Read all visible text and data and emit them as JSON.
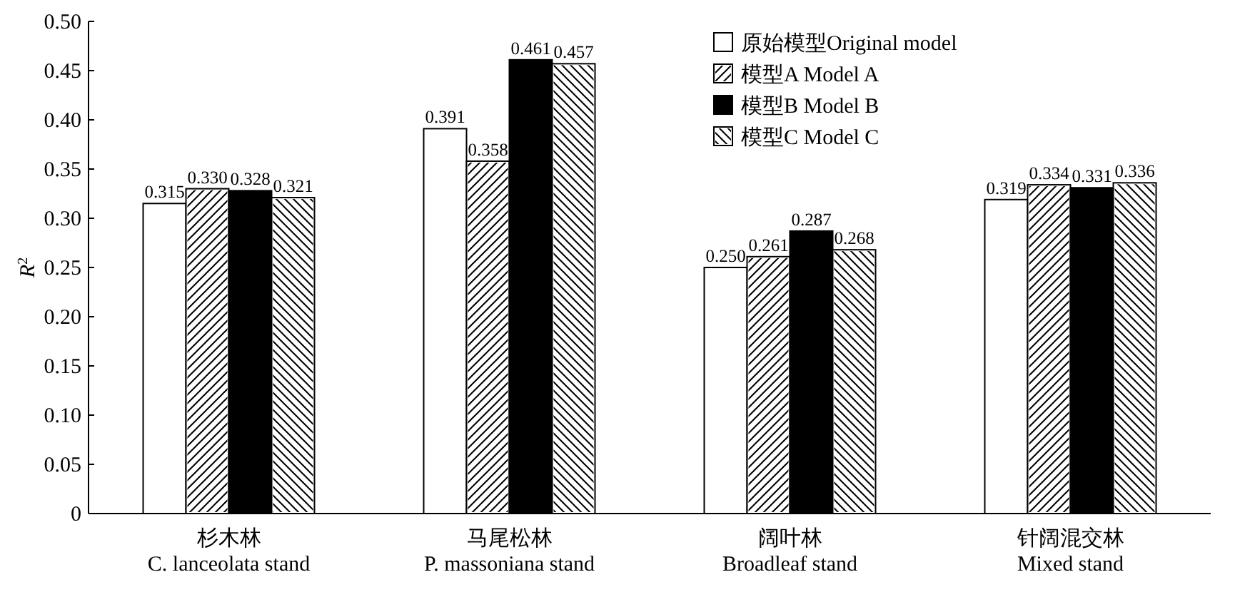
{
  "chart_data": {
    "type": "bar",
    "ylabel": "R$^{2}$",
    "categories": [
      "杉木林\nC. lanceolata stand",
      "马尾松林\nP. massoniana stand",
      "阔叶林\nBroadleaf stand",
      "针阔混交林\nMixed stand"
    ],
    "series": [
      {
        "name": "原始模型Original model",
        "color": "#ffffff",
        "values": [
          0.315,
          0.391,
          0.25,
          0.319
        ],
        "value_labels": [
          "0.315",
          "0.391",
          "0.250",
          "0.319"
        ]
      },
      {
        "name": "模型A Model A",
        "color": "#ffffff",
        "values": [
          0.33,
          0.358,
          0.261,
          0.334
        ],
        "value_labels": [
          "0.330",
          "0.358",
          "0.261",
          "0.334"
        ]
      },
      {
        "name": "模型B Model B",
        "color": "#000000",
        "values": [
          0.328,
          0.461,
          0.287,
          0.331
        ],
        "value_labels": [
          "0.328",
          "0.461",
          "0.287",
          "0.331"
        ]
      },
      {
        "name": "模型C Model C",
        "color": "#ffffff",
        "values": [
          0.321,
          0.457,
          0.268,
          0.336
        ],
        "value_labels": [
          "0.321",
          "0.457",
          "0.268",
          "0.336"
        ]
      }
    ],
    "ylim": [
      0,
      0.5
    ],
    "yticks": [
      0,
      {
        "value": 0.05,
        "label": "0.05"
      },
      {
        "value": 0.1,
        "label": "0.10"
      },
      {
        "value": 0.15,
        "label": "0.15"
      },
      {
        "value": 0.2,
        "label": "0.20"
      },
      {
        "value": 0.25,
        "label": "0.25"
      },
      {
        "value": 0.3,
        "label": "0.30"
      },
      {
        "value": 0.35,
        "label": "0.35"
      },
      {
        "value": 0.4,
        "label": "0.40"
      },
      {
        "value": 0.45,
        "label": "0.45"
      },
      {
        "value": 0.5,
        "label": "0.50"
      }
    ],
    "legend": "top right",
    "grid": false
  }
}
